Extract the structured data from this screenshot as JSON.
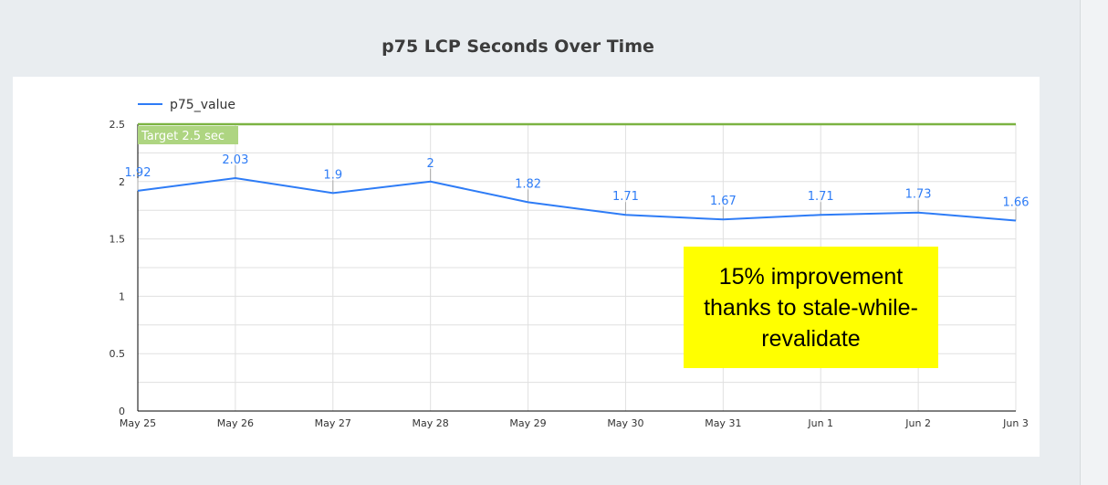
{
  "chart_data": {
    "type": "line",
    "title": "p75 LCP Seconds Over Time",
    "categories": [
      "May 25",
      "May 26",
      "May 27",
      "May 28",
      "May 29",
      "May 30",
      "May 31",
      "Jun 1",
      "Jun 2",
      "Jun 3"
    ],
    "series": [
      {
        "name": "p75_value",
        "values": [
          1.92,
          2.03,
          1.9,
          2,
          1.82,
          1.71,
          1.67,
          1.71,
          1.73,
          1.66
        ],
        "color": "#2e7cf6"
      }
    ],
    "data_labels": [
      "1.92",
      "2.03",
      "1.9",
      "2",
      "1.82",
      "1.71",
      "1.67",
      "1.71",
      "1.73",
      "1.66"
    ],
    "ylim": [
      0,
      2.5
    ],
    "yticks": [
      "0",
      "0.5",
      "1",
      "1.5",
      "2",
      "2.5"
    ],
    "grid": true,
    "legend": "top-left",
    "reference_line": {
      "value": 2.5,
      "label": "Target 2.5 sec",
      "color": "#7cb342"
    },
    "annotation": "15% improvement thanks to stale-while-revalidate"
  }
}
